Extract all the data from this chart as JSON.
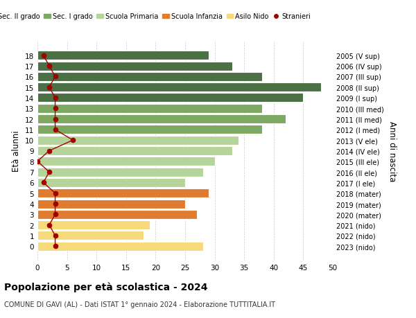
{
  "ages": [
    18,
    17,
    16,
    15,
    14,
    13,
    12,
    11,
    10,
    9,
    8,
    7,
    6,
    5,
    4,
    3,
    2,
    1,
    0
  ],
  "right_labels": [
    "2005 (V sup)",
    "2006 (IV sup)",
    "2007 (III sup)",
    "2008 (II sup)",
    "2009 (I sup)",
    "2010 (III med)",
    "2011 (II med)",
    "2012 (I med)",
    "2013 (V ele)",
    "2014 (IV ele)",
    "2015 (III ele)",
    "2016 (II ele)",
    "2017 (I ele)",
    "2018 (mater)",
    "2019 (mater)",
    "2020 (mater)",
    "2021 (nido)",
    "2022 (nido)",
    "2023 (nido)"
  ],
  "bar_values": [
    29,
    33,
    38,
    48,
    45,
    38,
    42,
    38,
    34,
    33,
    30,
    28,
    25,
    29,
    25,
    27,
    19,
    18,
    28
  ],
  "bar_colors": [
    "#4a7043",
    "#4a7043",
    "#4a7043",
    "#4a7043",
    "#4a7043",
    "#7da862",
    "#7da862",
    "#7da862",
    "#b5d49a",
    "#b5d49a",
    "#b5d49a",
    "#b5d49a",
    "#b5d49a",
    "#e07c30",
    "#e07c30",
    "#e07c30",
    "#f5d97a",
    "#f5d97a",
    "#f5d97a"
  ],
  "stranieri_values": [
    1,
    2,
    3,
    2,
    3,
    3,
    3,
    3,
    6,
    2,
    0,
    2,
    1,
    3,
    3,
    3,
    2,
    3,
    3
  ],
  "legend_labels": [
    "Sec. II grado",
    "Sec. I grado",
    "Scuola Primaria",
    "Scuola Infanzia",
    "Asilo Nido",
    "Stranieri"
  ],
  "legend_colors": [
    "#4a7043",
    "#7da862",
    "#b5d49a",
    "#e07c30",
    "#f5d97a",
    "#a30000"
  ],
  "ylabel_left": "Età alunni",
  "ylabel_right": "Anni di nascita",
  "title": "Popolazione per età scolastica - 2024",
  "subtitle": "COMUNE DI GAVI (AL) - Dati ISTAT 1° gennaio 2024 - Elaborazione TUTTITALIA.IT",
  "xlim": [
    0,
    50
  ],
  "xticks": [
    0,
    5,
    10,
    15,
    20,
    25,
    30,
    35,
    40,
    45,
    50
  ],
  "bg_color": "#ffffff",
  "bar_edge_color": "white",
  "grid_color": "#cccccc"
}
